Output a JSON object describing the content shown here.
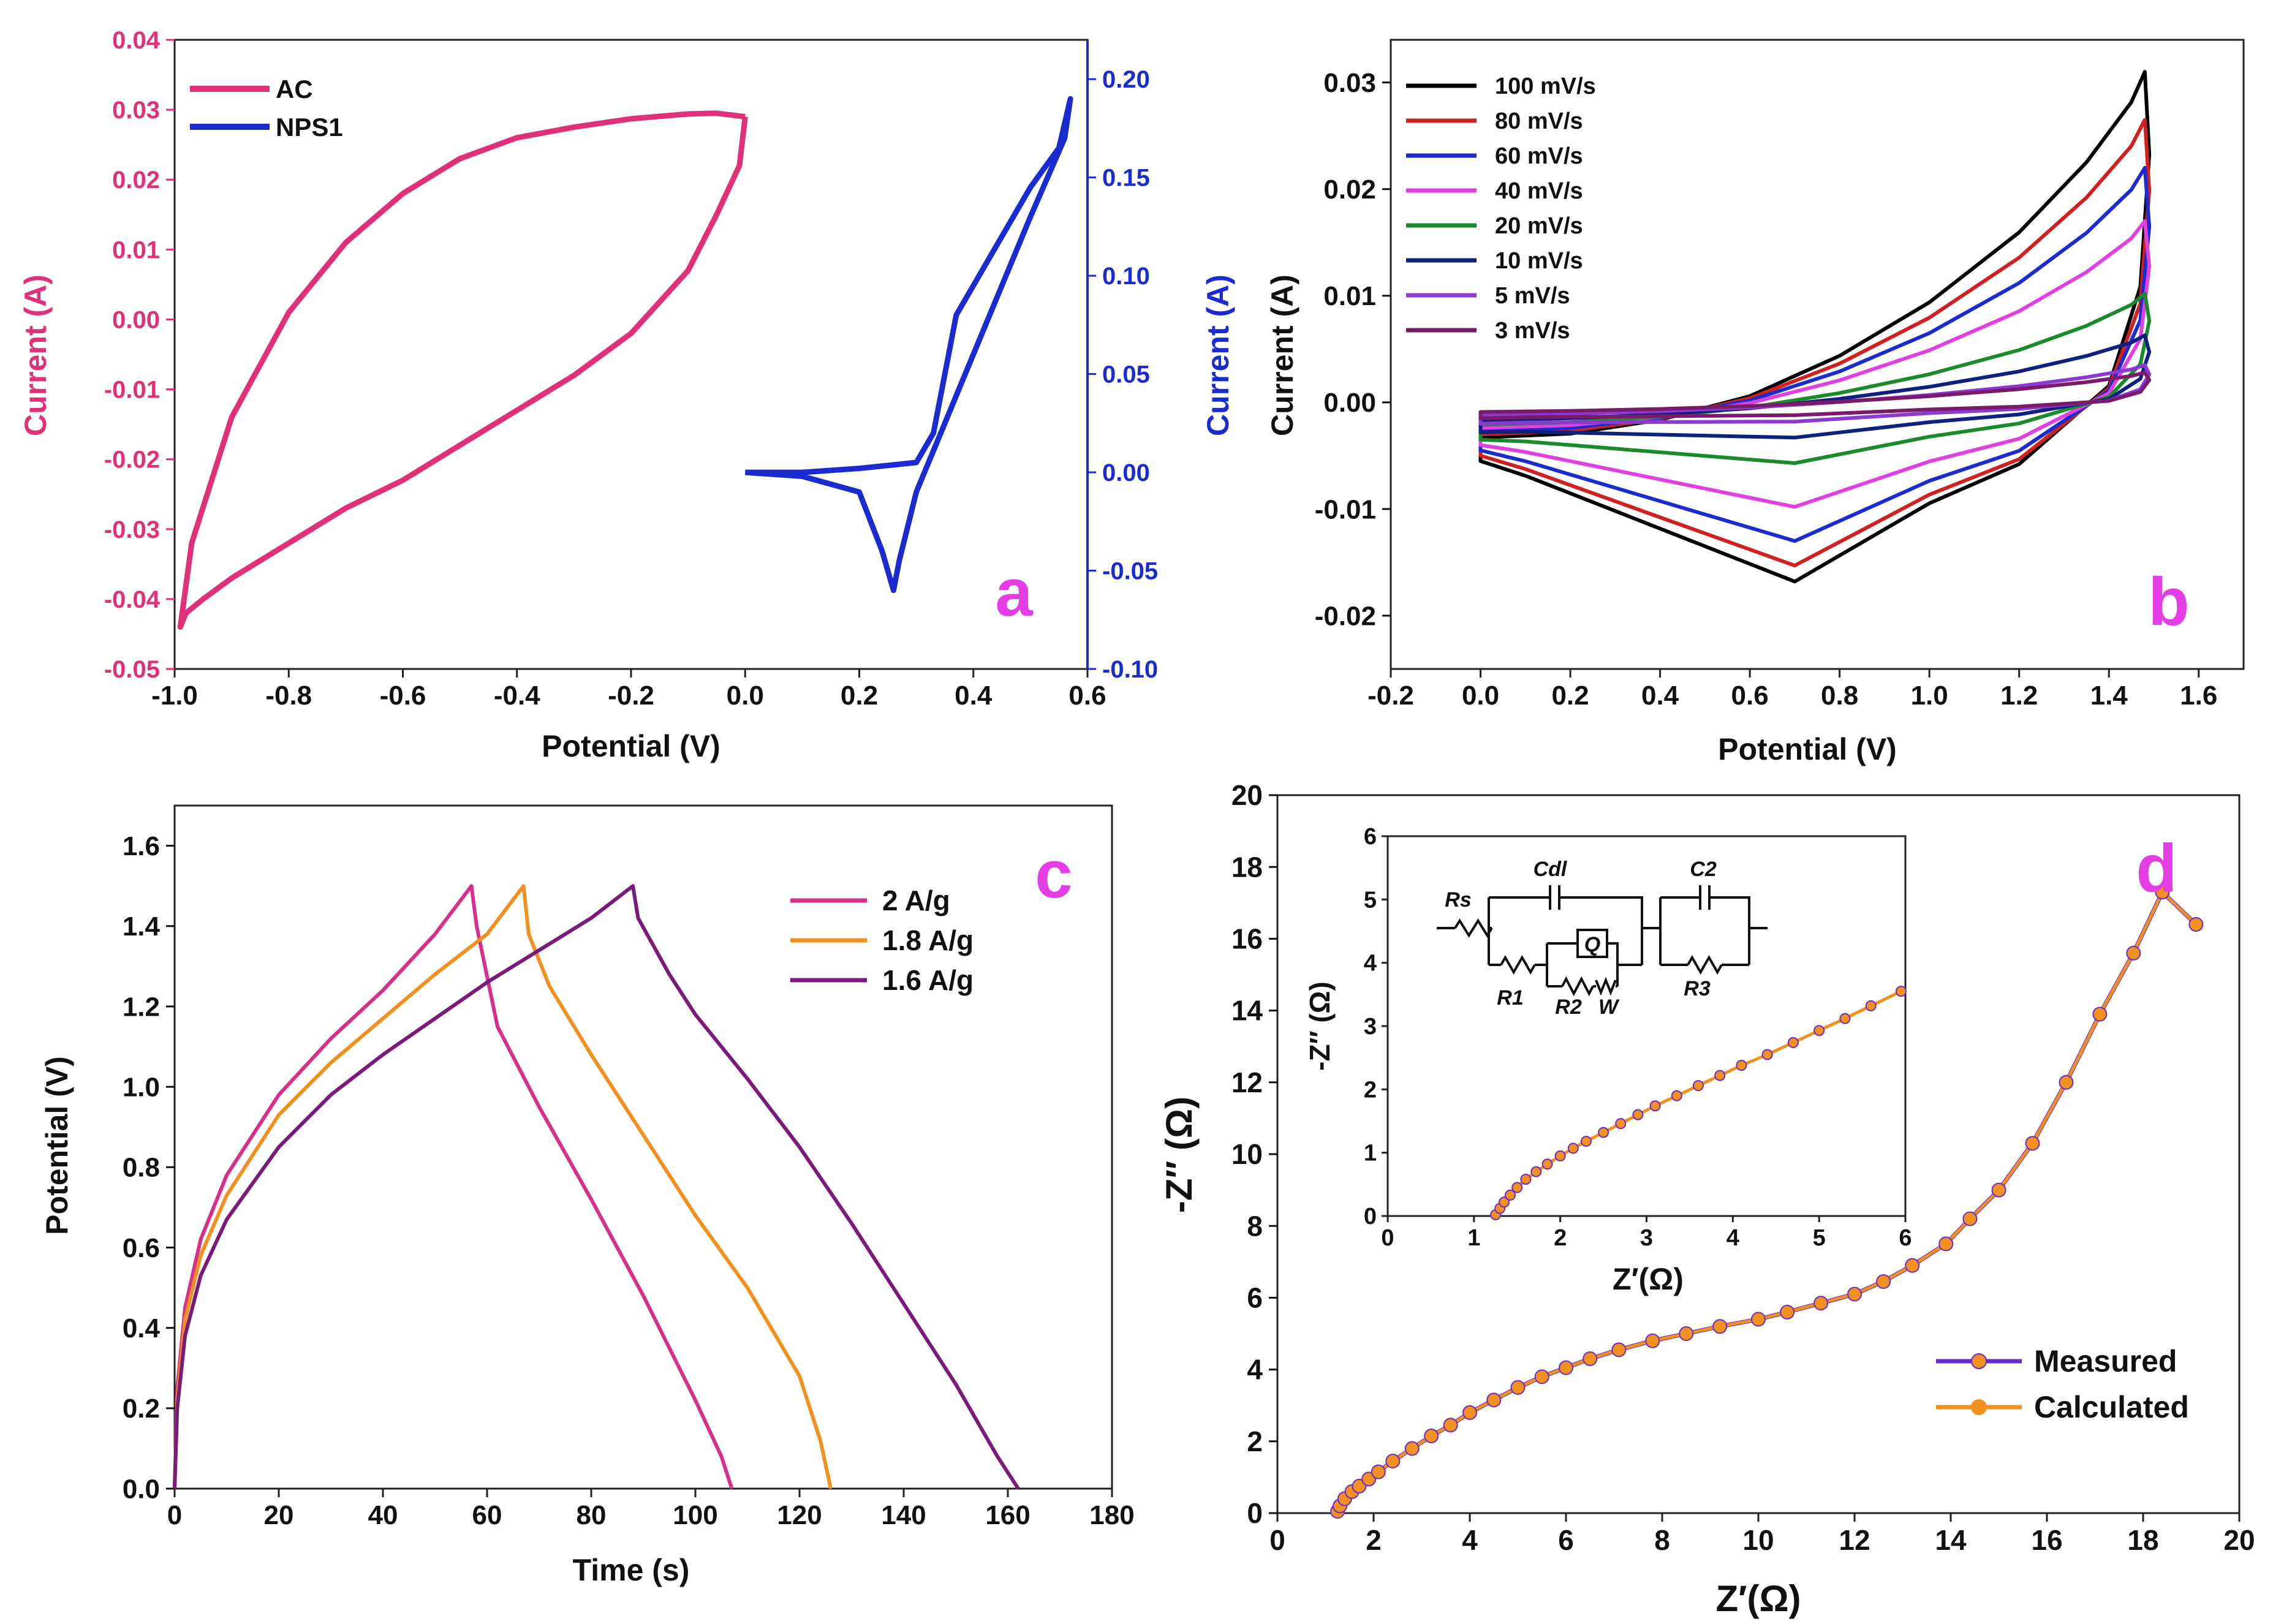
{
  "figure": {
    "description_label": "Four-panel electrochemical characterization figure"
  },
  "chart_data": [
    {
      "id": "a",
      "type": "line",
      "panel_label": "a",
      "xlabel": "Potential (V)",
      "ylabel": "Current (A)",
      "ylabel_right": "Current (A)",
      "xlim": [
        -1.0,
        0.6
      ],
      "ylim": [
        -0.05,
        0.04
      ],
      "ylim_right": [
        -0.1,
        0.22
      ],
      "xticks": [
        "-1.0",
        "-0.8",
        "-0.6",
        "-0.4",
        "-0.2",
        "0.0",
        "0.2",
        "0.4",
        "0.6"
      ],
      "yticks": [
        "-0.05",
        "-0.04",
        "-0.03",
        "-0.02",
        "-0.01",
        "0.00",
        "0.01",
        "0.02",
        "0.03",
        "0.04"
      ],
      "yticks_right": [
        "-0.10",
        "-0.05",
        "0.00",
        "0.05",
        "0.10",
        "0.15",
        "0.20"
      ],
      "colors": {
        "left_axis": "#e0307a",
        "right_axis": "#1a2bd0"
      },
      "series": [
        {
          "name": "AC",
          "color": "#e0307a",
          "axis": "left",
          "x": [
            0.0,
            -0.05,
            -0.1,
            -0.2,
            -0.3,
            -0.4,
            -0.5,
            -0.6,
            -0.7,
            -0.8,
            -0.9,
            -0.97,
            -0.99,
            -0.98,
            -0.95,
            -0.9,
            -0.8,
            -0.7,
            -0.6,
            -0.5,
            -0.4,
            -0.3,
            -0.2,
            -0.1,
            -0.05,
            -0.01,
            0.0
          ],
          "y": [
            0.029,
            0.0295,
            0.0294,
            0.0287,
            0.0275,
            0.026,
            0.023,
            0.018,
            0.011,
            0.001,
            -0.014,
            -0.032,
            -0.044,
            -0.042,
            -0.04,
            -0.037,
            -0.032,
            -0.027,
            -0.023,
            -0.018,
            -0.013,
            -0.008,
            -0.002,
            0.007,
            0.015,
            0.022,
            0.029
          ]
        },
        {
          "name": "NPS1",
          "color": "#1a2bd0",
          "axis": "right",
          "x": [
            0.0,
            0.1,
            0.2,
            0.3,
            0.33,
            0.35,
            0.37,
            0.4,
            0.45,
            0.5,
            0.55,
            0.57,
            0.56,
            0.5,
            0.45,
            0.4,
            0.35,
            0.3,
            0.27,
            0.26,
            0.24,
            0.2,
            0.1,
            0.0
          ],
          "y": [
            0.0,
            0.0,
            0.002,
            0.005,
            0.02,
            0.05,
            0.08,
            0.095,
            0.12,
            0.145,
            0.165,
            0.19,
            0.17,
            0.13,
            0.095,
            0.06,
            0.025,
            -0.01,
            -0.045,
            -0.06,
            -0.04,
            -0.01,
            -0.002,
            0.0
          ]
        }
      ],
      "legend": [
        "AC",
        "NPS1"
      ],
      "legend_position": "top-left"
    },
    {
      "id": "b",
      "type": "line",
      "panel_label": "b",
      "xlabel": "Potential (V)",
      "ylabel": "Current (A)",
      "xlim": [
        -0.2,
        1.7
      ],
      "ylim": [
        -0.025,
        0.034
      ],
      "xticks": [
        "-0.2",
        "0.0",
        "0.2",
        "0.4",
        "0.6",
        "0.8",
        "1.0",
        "1.2",
        "1.4",
        "1.6"
      ],
      "yticks": [
        "-0.02",
        "-0.01",
        "0.00",
        "0.01",
        "0.02",
        "0.03"
      ],
      "series": [
        {
          "name": "100 mV/s",
          "color": "#000000",
          "peak_high": 0.031,
          "peak_low": -0.0168,
          "start": -0.0055
        },
        {
          "name": "80 mV/s",
          "color": "#d02020",
          "peak_high": 0.0265,
          "peak_low": -0.0153,
          "start": -0.005
        },
        {
          "name": "60 mV/s",
          "color": "#1a2bd0",
          "peak_high": 0.022,
          "peak_low": -0.013,
          "start": -0.0045
        },
        {
          "name": "40 mV/s",
          "color": "#e040e0",
          "peak_high": 0.017,
          "peak_low": -0.0098,
          "start": -0.004
        },
        {
          "name": "20 mV/s",
          "color": "#1a8a2a",
          "peak_high": 0.0102,
          "peak_low": -0.0057,
          "start": -0.0035
        },
        {
          "name": "10 mV/s",
          "color": "#102080",
          "peak_high": 0.0063,
          "peak_low": -0.0033,
          "start": -0.0028
        },
        {
          "name": "5 mV/s",
          "color": "#8a3ad0",
          "peak_high": 0.0035,
          "peak_low": -0.0018,
          "start": -0.002
        },
        {
          "name": "3 mV/s",
          "color": "#7a1a6a",
          "peak_high": 0.0028,
          "peak_low": -0.0012,
          "start": -0.0015
        }
      ],
      "legend": [
        "100 mV/s",
        "80 mV/s",
        "60 mV/s",
        "40 mV/s",
        "20 mV/s",
        "10 mV/s",
        "5 mV/s",
        "3 mV/s"
      ],
      "legend_position": "top-left"
    },
    {
      "id": "c",
      "type": "line",
      "panel_label": "c",
      "xlabel": "Time (s)",
      "ylabel": "Potential (V)",
      "xlim": [
        0,
        180
      ],
      "ylim": [
        0,
        1.7
      ],
      "xticks": [
        "0",
        "20",
        "40",
        "60",
        "80",
        "100",
        "120",
        "140",
        "160",
        "180"
      ],
      "yticks": [
        "0.0",
        "0.2",
        "0.4",
        "0.6",
        "0.8",
        "1.0",
        "1.2",
        "1.4",
        "1.6"
      ],
      "series": [
        {
          "name": "2    A/g",
          "color": "#d6308a",
          "x": [
            0,
            0.5,
            2,
            5,
            10,
            20,
            30,
            40,
            50,
            57,
            58,
            62,
            70,
            80,
            90,
            100,
            105,
            107
          ],
          "y": [
            0,
            0.25,
            0.45,
            0.62,
            0.78,
            0.98,
            1.12,
            1.24,
            1.38,
            1.5,
            1.4,
            1.15,
            0.95,
            0.72,
            0.48,
            0.22,
            0.08,
            0
          ]
        },
        {
          "name": "1.8 A/g",
          "color": "#f0901e",
          "x": [
            0,
            0.5,
            2,
            5,
            10,
            20,
            30,
            40,
            50,
            60,
            67,
            68,
            72,
            80,
            90,
            100,
            110,
            120,
            124,
            126
          ],
          "y": [
            0,
            0.22,
            0.42,
            0.58,
            0.73,
            0.93,
            1.06,
            1.17,
            1.28,
            1.38,
            1.5,
            1.38,
            1.25,
            1.08,
            0.88,
            0.68,
            0.5,
            0.28,
            0.12,
            0
          ]
        },
        {
          "name": "1.6 A/g",
          "color": "#7a1a7a",
          "x": [
            0,
            0.5,
            2,
            5,
            10,
            20,
            30,
            40,
            50,
            60,
            70,
            80,
            88,
            89,
            95,
            100,
            110,
            120,
            130,
            140,
            150,
            158,
            162
          ],
          "y": [
            0,
            0.2,
            0.38,
            0.53,
            0.67,
            0.85,
            0.98,
            1.08,
            1.17,
            1.26,
            1.34,
            1.42,
            1.5,
            1.42,
            1.28,
            1.18,
            1.02,
            0.85,
            0.66,
            0.46,
            0.26,
            0.08,
            0
          ]
        }
      ],
      "legend": [
        "2    A/g",
        "1.8 A/g",
        "1.6 A/g"
      ],
      "legend_position": "top-right"
    },
    {
      "id": "d",
      "type": "scatter",
      "panel_label": "d",
      "xlabel": "Z′(Ω)",
      "ylabel": "-Z″ (Ω)",
      "xlim": [
        0,
        20
      ],
      "ylim": [
        0,
        20
      ],
      "xticks": [
        "0",
        "2",
        "4",
        "6",
        "8",
        "10",
        "12",
        "14",
        "16",
        "18",
        "20"
      ],
      "yticks": [
        "0",
        "2",
        "4",
        "6",
        "8",
        "10",
        "12",
        "14",
        "16",
        "18",
        "20"
      ],
      "series": [
        {
          "name": "Measured",
          "color": "#6a2ad0",
          "x": [
            1.25,
            1.3,
            1.4,
            1.55,
            1.7,
            1.9,
            2.1,
            2.4,
            2.8,
            3.2,
            3.6,
            4.0,
            4.5,
            5.0,
            5.5,
            6.0,
            6.5,
            7.1,
            7.8,
            8.5,
            9.2,
            10.0,
            10.6,
            11.3,
            12.0,
            12.6,
            13.2,
            13.9,
            14.4,
            15.0,
            15.7,
            16.4,
            17.1,
            17.8,
            18.4,
            19.1
          ],
          "y": [
            0.05,
            0.2,
            0.4,
            0.6,
            0.75,
            0.95,
            1.15,
            1.45,
            1.8,
            2.15,
            2.45,
            2.8,
            3.15,
            3.5,
            3.8,
            4.05,
            4.3,
            4.55,
            4.8,
            5.0,
            5.2,
            5.4,
            5.6,
            5.85,
            6.1,
            6.45,
            6.9,
            7.5,
            8.2,
            9.0,
            10.3,
            12.0,
            13.9,
            15.6,
            17.3,
            16.4
          ]
        },
        {
          "name": "Calculated",
          "color": "#f0901e"
        }
      ],
      "legend": [
        "Measured",
        "Calculated"
      ],
      "legend_position": "bottom-right",
      "inset": {
        "xlabel": "Z′(Ω)",
        "ylabel": "-Z″ (Ω)",
        "xlim": [
          0,
          6
        ],
        "ylim": [
          0,
          6
        ],
        "xticks": [
          "0",
          "1",
          "2",
          "3",
          "4",
          "5",
          "6"
        ],
        "yticks": [
          "0",
          "1",
          "2",
          "3",
          "4",
          "5",
          "6"
        ],
        "x": [
          1.25,
          1.3,
          1.35,
          1.42,
          1.5,
          1.6,
          1.72,
          1.85,
          2.0,
          2.15,
          2.3,
          2.5,
          2.7,
          2.9,
          3.1,
          3.35,
          3.6,
          3.85,
          4.1,
          4.4,
          4.7,
          5.0,
          5.3,
          5.6,
          5.95
        ],
        "y": [
          0.02,
          0.12,
          0.22,
          0.33,
          0.45,
          0.58,
          0.7,
          0.82,
          0.95,
          1.07,
          1.18,
          1.32,
          1.46,
          1.6,
          1.74,
          1.9,
          2.06,
          2.22,
          2.38,
          2.55,
          2.74,
          2.93,
          3.12,
          3.32,
          3.55
        ]
      },
      "circuit": {
        "labels": [
          "Rs",
          "Cdl",
          "Q",
          "C2",
          "R1",
          "R2",
          "W",
          "R3"
        ]
      }
    }
  ]
}
